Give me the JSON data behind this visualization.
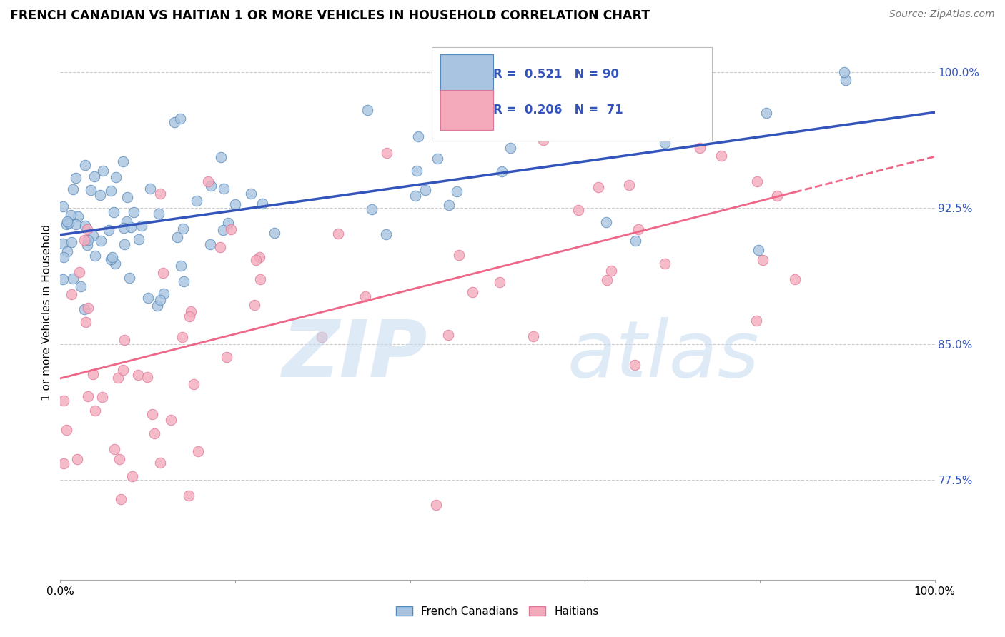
{
  "title": "FRENCH CANADIAN VS HAITIAN 1 OR MORE VEHICLES IN HOUSEHOLD CORRELATION CHART",
  "source": "Source: ZipAtlas.com",
  "ylabel": "1 or more Vehicles in Household",
  "xlim": [
    0,
    100
  ],
  "ylim": [
    72,
    101.5
  ],
  "yticks": [
    77.5,
    85.0,
    92.5,
    100.0
  ],
  "xticks": [
    0,
    20,
    40,
    60,
    80,
    100
  ],
  "blue_color": "#A8C4E0",
  "blue_edge_color": "#5588BB",
  "pink_color": "#F4AABB",
  "pink_edge_color": "#DD7799",
  "blue_line_color": "#3355BB",
  "pink_line_color": "#EE6688",
  "legend_r_blue": "R =  0.521",
  "legend_n_blue": "N = 90",
  "legend_r_pink": "R =  0.206",
  "legend_n_pink": "N =  71",
  "watermark_zip_color": "#C8DDF0",
  "watermark_atlas_color": "#C8DDF0"
}
